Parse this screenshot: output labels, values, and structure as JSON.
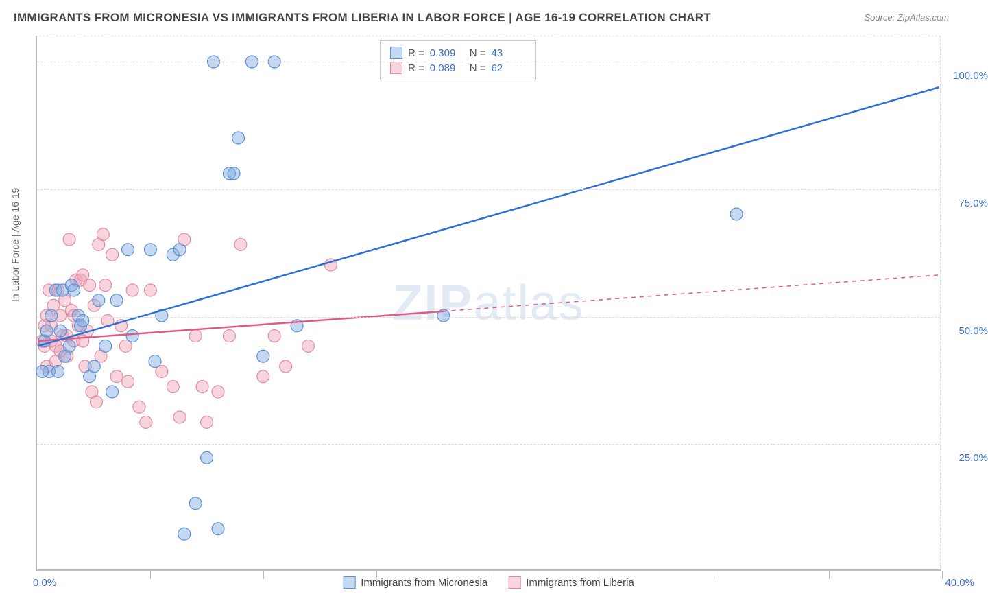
{
  "title": "IMMIGRANTS FROM MICRONESIA VS IMMIGRANTS FROM LIBERIA IN LABOR FORCE | AGE 16-19 CORRELATION CHART",
  "source": "Source: ZipAtlas.com",
  "y_axis_label": "In Labor Force | Age 16-19",
  "watermark_bold": "ZIP",
  "watermark_light": "atlas",
  "chart": {
    "type": "scatter-correlation",
    "background_color": "#ffffff",
    "grid_color": "#dddddd",
    "axis_color": "#bbbbbb",
    "xlim": [
      0,
      40
    ],
    "ylim": [
      0,
      105
    ],
    "x_ticks": [
      0,
      5,
      10,
      15,
      20,
      25,
      30,
      35,
      40
    ],
    "x_tick_labels": {
      "0": "0.0%",
      "40": "40.0%"
    },
    "y_gridlines": [
      25,
      50,
      75,
      100
    ],
    "y_tick_labels": {
      "25": "25.0%",
      "50": "50.0%",
      "75": "75.0%",
      "100": "100.0%"
    },
    "marker_radius": 9,
    "marker_stroke_width": 1.2,
    "line_width": 2.5,
    "series": [
      {
        "name": "Immigrants from Micronesia",
        "color_fill": "rgba(125,170,225,0.45)",
        "color_stroke": "#5b8fd6",
        "line_color": "#2d6fd6",
        "r_value": "0.309",
        "n_value": "43",
        "trend": {
          "x1": 0,
          "y1": 44,
          "x2": 40,
          "y2": 95,
          "dash_from_x": 40
        },
        "points": [
          [
            0.3,
            45
          ],
          [
            0.4,
            47
          ],
          [
            0.5,
            39
          ],
          [
            0.6,
            50
          ],
          [
            0.8,
            55
          ],
          [
            0.9,
            39
          ],
          [
            1.0,
            47
          ],
          [
            1.1,
            55
          ],
          [
            1.2,
            42
          ],
          [
            1.4,
            44
          ],
          [
            1.5,
            56
          ],
          [
            1.6,
            55
          ],
          [
            1.8,
            50
          ],
          [
            1.9,
            48
          ],
          [
            2.0,
            49
          ],
          [
            2.3,
            38
          ],
          [
            2.5,
            40
          ],
          [
            2.7,
            53
          ],
          [
            3.0,
            44
          ],
          [
            3.3,
            35
          ],
          [
            3.5,
            53
          ],
          [
            4.0,
            63
          ],
          [
            4.2,
            46
          ],
          [
            5.0,
            63
          ],
          [
            5.2,
            41
          ],
          [
            5.5,
            50
          ],
          [
            6.0,
            62
          ],
          [
            6.3,
            63
          ],
          [
            6.5,
            7
          ],
          [
            7.0,
            13
          ],
          [
            7.5,
            22
          ],
          [
            7.8,
            100
          ],
          [
            8.0,
            8
          ],
          [
            8.5,
            78
          ],
          [
            8.7,
            78
          ],
          [
            8.9,
            85
          ],
          [
            9.5,
            100
          ],
          [
            10.0,
            42
          ],
          [
            10.5,
            100
          ],
          [
            11.5,
            48
          ],
          [
            18.0,
            50
          ],
          [
            31.0,
            70
          ],
          [
            0.2,
            39
          ]
        ]
      },
      {
        "name": "Immigrants from Liberia",
        "color_fill": "rgba(240,160,180,0.45)",
        "color_stroke": "#e08ba3",
        "line_color": "#e05a85",
        "r_value": "0.089",
        "n_value": "62",
        "trend": {
          "x1": 0,
          "y1": 45,
          "x2": 40,
          "y2": 58,
          "dash_from_x": 18
        },
        "points": [
          [
            0.2,
            45
          ],
          [
            0.3,
            44
          ],
          [
            0.4,
            40
          ],
          [
            0.5,
            55
          ],
          [
            0.6,
            48
          ],
          [
            0.7,
            52
          ],
          [
            0.8,
            41
          ],
          [
            0.9,
            55
          ],
          [
            1.0,
            50
          ],
          [
            1.1,
            46
          ],
          [
            1.2,
            53
          ],
          [
            1.3,
            46
          ],
          [
            1.4,
            65
          ],
          [
            1.5,
            51
          ],
          [
            1.6,
            45
          ],
          [
            1.7,
            57
          ],
          [
            1.8,
            48
          ],
          [
            1.9,
            57
          ],
          [
            2.0,
            58
          ],
          [
            2.1,
            40
          ],
          [
            2.2,
            47
          ],
          [
            2.3,
            56
          ],
          [
            2.4,
            35
          ],
          [
            2.5,
            52
          ],
          [
            2.6,
            33
          ],
          [
            2.7,
            64
          ],
          [
            2.8,
            42
          ],
          [
            2.9,
            66
          ],
          [
            3.0,
            56
          ],
          [
            3.1,
            49
          ],
          [
            3.3,
            62
          ],
          [
            3.5,
            38
          ],
          [
            3.7,
            48
          ],
          [
            3.9,
            44
          ],
          [
            4.0,
            37
          ],
          [
            4.2,
            55
          ],
          [
            4.5,
            32
          ],
          [
            4.8,
            29
          ],
          [
            5.0,
            55
          ],
          [
            5.5,
            39
          ],
          [
            6.0,
            36
          ],
          [
            6.3,
            30
          ],
          [
            6.5,
            65
          ],
          [
            7.0,
            46
          ],
          [
            7.3,
            36
          ],
          [
            7.5,
            29
          ],
          [
            8.0,
            35
          ],
          [
            8.5,
            46
          ],
          [
            9.0,
            64
          ],
          [
            10.0,
            38
          ],
          [
            10.5,
            46
          ],
          [
            11.0,
            40
          ],
          [
            12.0,
            44
          ],
          [
            13.0,
            60
          ],
          [
            0.3,
            48
          ],
          [
            0.4,
            50
          ],
          [
            0.6,
            45
          ],
          [
            0.8,
            44
          ],
          [
            1.0,
            43
          ],
          [
            1.3,
            42
          ],
          [
            1.6,
            50
          ],
          [
            2.0,
            45
          ]
        ]
      }
    ]
  },
  "legend_bottom": [
    {
      "label": "Immigrants from Micronesia",
      "fill": "rgba(125,170,225,0.45)",
      "stroke": "#5b8fd6"
    },
    {
      "label": "Immigrants from Liberia",
      "fill": "rgba(240,160,180,0.45)",
      "stroke": "#e08ba3"
    }
  ],
  "legend_top_labels": {
    "r": "R =",
    "n": "N ="
  }
}
